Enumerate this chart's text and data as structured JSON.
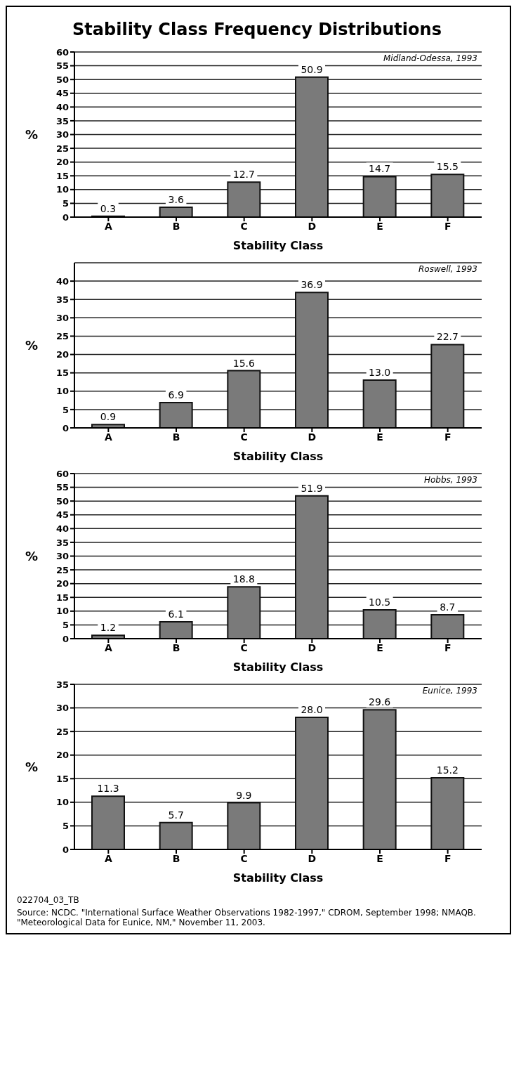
{
  "chart_data": [
    {
      "type": "bar",
      "title": "Stability Class Frequency Distributions",
      "subtitle": "Midland-Odessa, 1993",
      "xlabel": "Stability Class",
      "ylabel": "%",
      "categories": [
        "A",
        "B",
        "C",
        "D",
        "E",
        "F"
      ],
      "values": [
        0.3,
        3.6,
        12.7,
        50.9,
        14.7,
        15.5
      ],
      "color": "#7a7a7a",
      "ylim": [
        0,
        60
      ],
      "yticks": [
        0,
        5,
        10,
        15,
        20,
        25,
        30,
        35,
        40,
        45,
        50,
        55,
        60
      ],
      "grid": "y",
      "data_labels": true
    },
    {
      "type": "bar",
      "subtitle": "Roswell, 1993",
      "xlabel": "Stability Class",
      "ylabel": "%",
      "categories": [
        "A",
        "B",
        "C",
        "D",
        "E",
        "F"
      ],
      "values": [
        0.9,
        6.9,
        15.6,
        36.9,
        13.0,
        22.7
      ],
      "value_labels": [
        "0.9",
        "6.9",
        "15.6",
        "36.9",
        "13.0",
        "22.7"
      ],
      "color": "#7a7a7a",
      "ylim": [
        0,
        45
      ],
      "yticks": [
        0,
        5,
        10,
        15,
        20,
        25,
        30,
        35,
        40
      ],
      "grid": "y"
    },
    {
      "type": "bar",
      "subtitle": "Hobbs, 1993",
      "xlabel": "Stability Class",
      "ylabel": "%",
      "categories": [
        "A",
        "B",
        "C",
        "D",
        "E",
        "F"
      ],
      "values": [
        1.2,
        6.1,
        18.8,
        51.9,
        10.5,
        8.7
      ],
      "color": "#7a7a7a",
      "ylim": [
        0,
        60
      ],
      "yticks": [
        0,
        5,
        10,
        15,
        20,
        25,
        30,
        35,
        40,
        45,
        50,
        55,
        60
      ],
      "grid": "y",
      "data_labels": true
    },
    {
      "type": "bar",
      "subtitle": "Eunice, 1993",
      "xlabel": "Stability Class",
      "ylabel": "%",
      "categories": [
        "A",
        "B",
        "C",
        "D",
        "E",
        "F"
      ],
      "values": [
        11.3,
        5.7,
        9.9,
        28.0,
        29.6,
        15.2
      ],
      "value_labels": [
        "11.3",
        "5.7",
        "9.9",
        "28.0",
        "29.6",
        "15.2"
      ],
      "color": "#7a7a7a",
      "ylim": [
        0,
        35
      ],
      "yticks": [
        0,
        5,
        10,
        15,
        20,
        25,
        30,
        35
      ],
      "grid": "y",
      "annotations": [
        "022704_03_TB",
        "Source: NCDC. \"International Surface Weather Observations 1982-1997,\" CDROM, September 1998; NMAQB. \"Meteorological Data for Eunice, NM,\" November 11, 2003."
      ]
    }
  ]
}
